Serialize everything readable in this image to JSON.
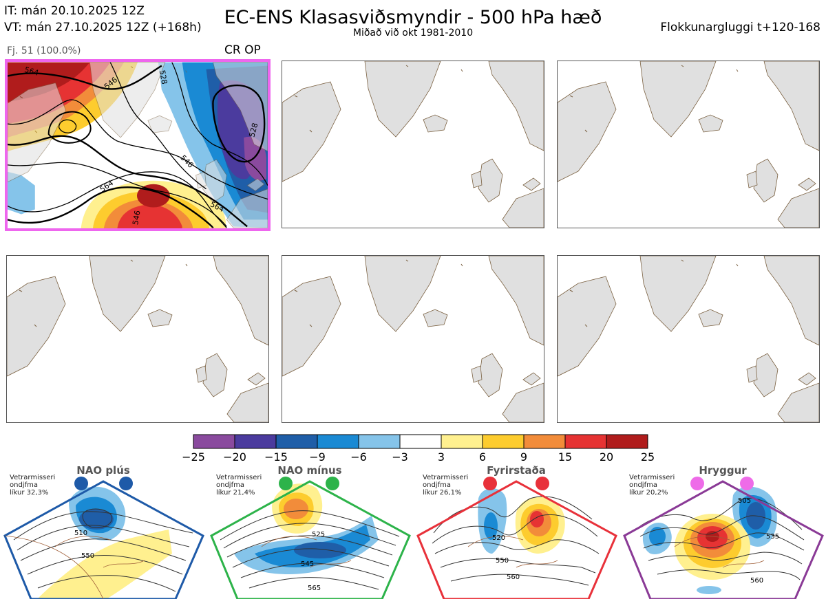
{
  "header": {
    "it": "IT: mán 20.10.2025 12Z",
    "vt": "VT: mán 27.10.2025 12Z  (+168h)",
    "title": "EC-ENS Klasasviðsmyndir - 500 hPa hæð",
    "subtitle": "Miðað við okt 1981-2010",
    "window": "Flokkunargluggi t+120-168"
  },
  "cluster": {
    "members_label": "Fj. 51 (100.0%)",
    "regime_label": "CR OP",
    "contour_labels": [
      "564",
      "546",
      "528",
      "546",
      "564",
      "546",
      "528"
    ]
  },
  "colorbar": {
    "ticks": [
      "−25",
      "−20",
      "−15",
      "−9",
      "−6",
      "−3",
      "3",
      "6",
      "9",
      "15",
      "20",
      "25"
    ],
    "colors": [
      "#8a4a9e",
      "#4b3b9e",
      "#1f5ea8",
      "#1a8ad4",
      "#85c4ea",
      "#ffffff",
      "#fff08f",
      "#fdcc2e",
      "#f28c3a",
      "#e63333",
      "#b01c1c"
    ]
  },
  "regimes": [
    {
      "name": "NAO plús",
      "note": "Vetrarmisseri\nondjfma\nlíkur 32,3%",
      "color": "#1e5aa8",
      "contours": [
        "510",
        "550"
      ]
    },
    {
      "name": "NAO mínus",
      "note": "Vetrarmisseri\nondjfma\nlíkur 21,4%",
      "color": "#2db34a",
      "contours": [
        "525",
        "545",
        "565"
      ]
    },
    {
      "name": "Fyrirstaða",
      "note": "Vetrarmisseri\nondjfma\nlíkur 26,1%",
      "color": "#e8313a",
      "contours": [
        "520",
        "550",
        "560"
      ]
    },
    {
      "name": "Hryggur",
      "note": "Vetrarmisseri\nondjfma\nlíkur 20,2%",
      "color": "#ee6be8",
      "contours": [
        "505",
        "535",
        "560"
      ]
    }
  ]
}
